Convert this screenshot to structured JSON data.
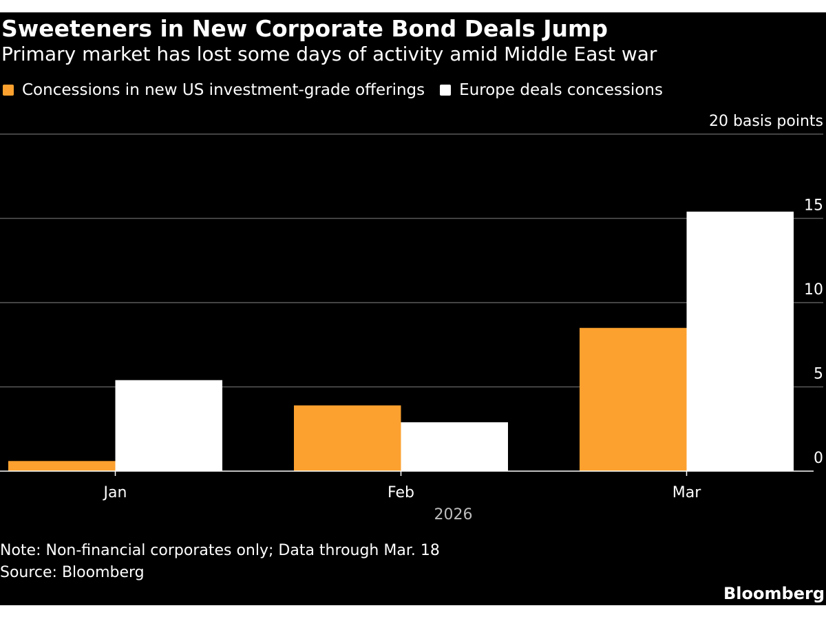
{
  "chart_data": {
    "type": "bar",
    "title": "Sweeteners in New Corporate Bond Deals Jump",
    "subtitle": "Primary market has lost some days of activity amid Middle East war",
    "categories": [
      "Jan",
      "Feb",
      "Mar"
    ],
    "x_group_label": "2026",
    "series": [
      {
        "name": "Concessions in new US investment-grade offerings",
        "color": "#fca12f",
        "values": [
          0.6,
          3.9,
          8.5
        ]
      },
      {
        "name": "Europe deals concessions",
        "color": "#ffffff",
        "values": [
          5.4,
          2.9,
          15.4
        ]
      }
    ],
    "ylim": [
      0,
      20
    ],
    "yticks": [
      0,
      5,
      10,
      15,
      20
    ],
    "ytick_labels": [
      "0",
      "5",
      "10",
      "15",
      "20 basis points"
    ],
    "ylabel": "basis points",
    "xlabel": "",
    "grid": true,
    "legend_position": "top-left",
    "note": "Note: Non-financial corporates only; Data through Mar. 18",
    "source": "Source: Bloomberg"
  },
  "brand": "Bloomberg",
  "colors": {
    "background": "#000000",
    "gridline": "#5a5a5a",
    "axis": "#ffffff",
    "text": "#ffffff",
    "muted_text": "#bdbdbd"
  }
}
